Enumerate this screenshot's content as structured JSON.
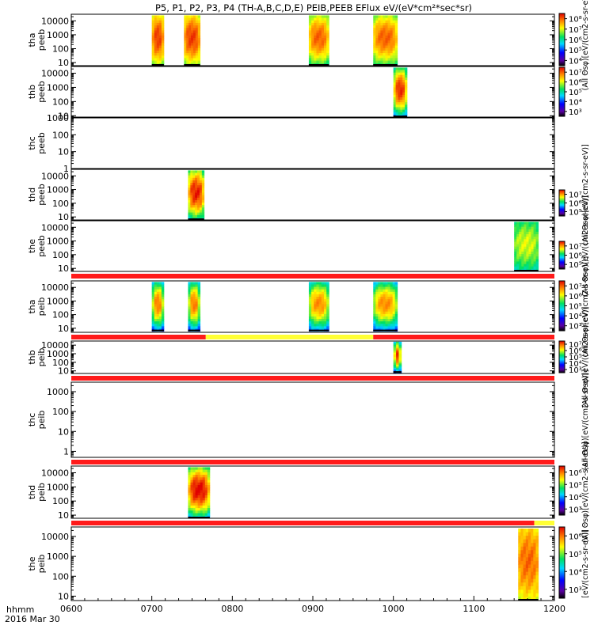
{
  "title": "P5, P1, P2, P3, P4 (TH-A,B,C,D,E) PEIB,PEEB EFlux eV/(eV*cm²*sec*sr)",
  "colors": {
    "flag_red": "#ff1a1a",
    "flag_yellow": "#ffff33",
    "frame": "#000000",
    "background": "#ffffff"
  },
  "chart_data": {
    "type": "heatmap",
    "time_axis": {
      "ticks": [
        "0600",
        "0700",
        "0800",
        "0900",
        "1000",
        "1100",
        "1200"
      ],
      "label_top": "hhmm",
      "label_bottom": "2016 Mar 30",
      "range_hours": [
        6,
        12
      ]
    },
    "panels": [
      {
        "id": "tha_peeb",
        "probe": "tha",
        "species": "peeb",
        "ylabel_top": "tha",
        "ylabel_bottom": "peeb",
        "ylog": true,
        "yrange": [
          6,
          30000
        ],
        "yticks": [
          "10",
          "100",
          "1000",
          "10000"
        ],
        "cbar_ticks": [
          "10⁴",
          "10⁵",
          "10⁶",
          "10⁷",
          "10⁸"
        ],
        "cbar_range_exp": [
          3.5,
          8.3
        ],
        "cbar_label": "(All Θsφ)[eV/(cm2-s-sr-eV)]",
        "blocks": [
          {
            "start": 7.0,
            "end": 7.15,
            "low": 6,
            "high": 25000,
            "peak": 8.0,
            "floor": 6.0
          },
          {
            "start": 7.4,
            "end": 7.6,
            "low": 6,
            "high": 25000,
            "peak": 8.0,
            "floor": 6.0
          },
          {
            "start": 8.95,
            "end": 9.2,
            "low": 6,
            "high": 25000,
            "peak": 7.8,
            "floor": 5.5
          },
          {
            "start": 9.75,
            "end": 10.05,
            "low": 6,
            "high": 25000,
            "peak": 7.8,
            "floor": 5.5
          }
        ],
        "flag": null
      },
      {
        "id": "thb_peeb",
        "probe": "thb",
        "species": "peeb",
        "ylabel_top": "thb",
        "ylabel_bottom": "peeb",
        "ylog": true,
        "yrange": [
          8,
          30000
        ],
        "yticks": [
          "10",
          "100",
          "1000",
          "10000"
        ],
        "cbar_ticks": [
          "10³",
          "10⁴",
          "10⁵",
          "10⁶",
          "10⁷"
        ],
        "cbar_range_exp": [
          2.8,
          7.4
        ],
        "cbar_label": "",
        "blocks": [
          {
            "start": 10.0,
            "end": 10.17,
            "low": 8,
            "high": 25000,
            "peak": 7.2,
            "floor": 3.5
          }
        ],
        "flag": null
      },
      {
        "id": "thc_peeb",
        "probe": "thc",
        "species": "peeb",
        "ylabel_top": "thc",
        "ylabel_bottom": "peeb",
        "ylog": true,
        "yrange": [
          1,
          1000
        ],
        "yticks": [
          "1",
          "10",
          "100",
          "1000"
        ],
        "cbar_ticks": [],
        "cbar_range_exp": [
          0,
          1
        ],
        "cbar_label": "",
        "blocks": [],
        "flag": null
      },
      {
        "id": "thd_peeb",
        "probe": "thd",
        "species": "peeb",
        "ylabel_top": "thd",
        "ylabel_bottom": "peeb",
        "ylog": true,
        "yrange": [
          6,
          30000
        ],
        "yticks": [
          "10",
          "100",
          "1000",
          "10000"
        ],
        "cbar_ticks": [
          "10⁵",
          "10⁶",
          "10⁷"
        ],
        "cbar_range_exp": [
          4.3,
          7.5
        ],
        "cbar_label": "(All Θsφ)[eV/(cm2-s-sr-eV)]",
        "blocks": [
          {
            "start": 7.45,
            "end": 7.65,
            "low": 6,
            "high": 25000,
            "peak": 7.4,
            "floor": 5.2
          }
        ],
        "flag": null
      },
      {
        "id": "the_peeb",
        "probe": "the",
        "species": "peeb",
        "ylabel_top": "the",
        "ylabel_bottom": "peeb",
        "ylog": true,
        "yrange": [
          6,
          30000
        ],
        "yticks": [
          "10",
          "100",
          "1000",
          "10000"
        ],
        "cbar_ticks": [
          "10⁵",
          "10⁶",
          "10⁷"
        ],
        "cbar_range_exp": [
          4.3,
          7.6
        ],
        "cbar_label": "(All Θsφ)[eV/(cm2-s-sr-eV)]",
        "blocks": [
          {
            "start": 11.5,
            "end": 11.8,
            "low": 6,
            "high": 25000,
            "peak": 6.6,
            "floor": 5.6
          }
        ],
        "flag": null
      },
      {
        "id": "tha_peib",
        "probe": "tha",
        "species": "peib",
        "ylabel_top": "tha",
        "ylabel_bottom": "peib",
        "ylog": true,
        "yrange": [
          5,
          30000
        ],
        "yticks": [
          "10",
          "100",
          "1000",
          "10000"
        ],
        "cbar_ticks": [
          "10³",
          "10⁴",
          "10⁵",
          "10⁶",
          "10⁷"
        ],
        "cbar_range_exp": [
          2.8,
          7.4
        ],
        "cbar_label": "(All Θsφ)[eV/(cm2-s-sr-eV)]",
        "blocks": [
          {
            "start": 7.0,
            "end": 7.15,
            "low": 6,
            "high": 25000,
            "peak": 6.8,
            "floor": 3.2
          },
          {
            "start": 7.45,
            "end": 7.6,
            "low": 6,
            "high": 25000,
            "peak": 6.8,
            "floor": 3.2
          },
          {
            "start": 8.95,
            "end": 9.2,
            "low": 6,
            "high": 25000,
            "peak": 6.7,
            "floor": 3.4
          },
          {
            "start": 9.75,
            "end": 10.05,
            "low": 6,
            "high": 25000,
            "peak": 6.7,
            "floor": 3.2
          }
        ],
        "flag": {
          "segments": [
            {
              "start": 6.0,
              "end": 12.0,
              "color": "red"
            }
          ]
        }
      },
      {
        "id": "thb_peib",
        "probe": "thb",
        "species": "peib",
        "ylabel_top": "thb",
        "ylabel_bottom": "peib",
        "ylog": true,
        "yrange": [
          5,
          30000
        ],
        "yticks": [
          "10",
          "100",
          "1000",
          "10000"
        ],
        "cbar_ticks": [
          "10³",
          "10⁴",
          "10⁵",
          "10⁶",
          "10⁷"
        ],
        "cbar_range_exp": [
          2.8,
          7.4
        ],
        "cbar_label": "(All Θsφ)[eV/(cm2-s-sr-eV)]",
        "blocks": [
          {
            "start": 10.0,
            "end": 10.1,
            "low": 6,
            "high": 25000,
            "peak": 7.2,
            "floor": 3.0
          }
        ],
        "flag": {
          "segments": [
            {
              "start": 6.0,
              "end": 7.67,
              "color": "red"
            },
            {
              "start": 7.67,
              "end": 9.75,
              "color": "yellow"
            },
            {
              "start": 9.75,
              "end": 12.0,
              "color": "red"
            }
          ]
        }
      },
      {
        "id": "thc_peib",
        "probe": "thc",
        "species": "peib",
        "ylabel_top": "thc",
        "ylabel_bottom": "peib",
        "ylog": true,
        "yrange": [
          0.5,
          3000
        ],
        "yticks": [
          "1",
          "10",
          "100",
          "1000"
        ],
        "cbar_ticks": [],
        "cbar_range_exp": [
          0,
          1
        ],
        "cbar_label": "(All Θsφ)[eV/(cm2-s-sr-eV)]",
        "blocks": [],
        "flag": {
          "segments": [
            {
              "start": 6.0,
              "end": 12.0,
              "color": "red"
            }
          ]
        }
      },
      {
        "id": "thd_peib",
        "probe": "thd",
        "species": "peib",
        "ylabel_top": "thd",
        "ylabel_bottom": "peib",
        "ylog": true,
        "yrange": [
          6,
          30000
        ],
        "yticks": [
          "10",
          "100",
          "1000",
          "10000"
        ],
        "cbar_ticks": [
          "10³",
          "10⁴",
          "10⁵",
          "10⁶"
        ],
        "cbar_range_exp": [
          2.8,
          6.3
        ],
        "cbar_label": "(All Θsφ)[eV/(cm2-s-sr-eV)]",
        "blocks": [
          {
            "start": 7.45,
            "end": 7.72,
            "low": 6,
            "high": 25000,
            "peak": 6.3,
            "floor": 3.5
          }
        ],
        "flag": {
          "segments": [
            {
              "start": 6.0,
              "end": 12.0,
              "color": "red"
            }
          ]
        }
      },
      {
        "id": "the_peib",
        "probe": "the",
        "species": "peib",
        "ylabel_top": "the",
        "ylabel_bottom": "peib",
        "ylog": true,
        "yrange": [
          6,
          30000
        ],
        "yticks": [
          "10",
          "100",
          "1000",
          "10000"
        ],
        "cbar_ticks": [
          "10³",
          "10⁴",
          "10⁵",
          "10⁶"
        ],
        "cbar_range_exp": [
          2.8,
          6.3
        ],
        "cbar_label": "[eV/(cm2-s-sr-eV)]",
        "blocks": [
          {
            "start": 11.55,
            "end": 11.8,
            "low": 6,
            "high": 25000,
            "peak": 5.9,
            "floor": 5.0
          }
        ],
        "flag": {
          "segments": [
            {
              "start": 6.0,
              "end": 11.75,
              "color": "red"
            },
            {
              "start": 11.75,
              "end": 12.0,
              "color": "yellow"
            }
          ]
        }
      }
    ]
  }
}
